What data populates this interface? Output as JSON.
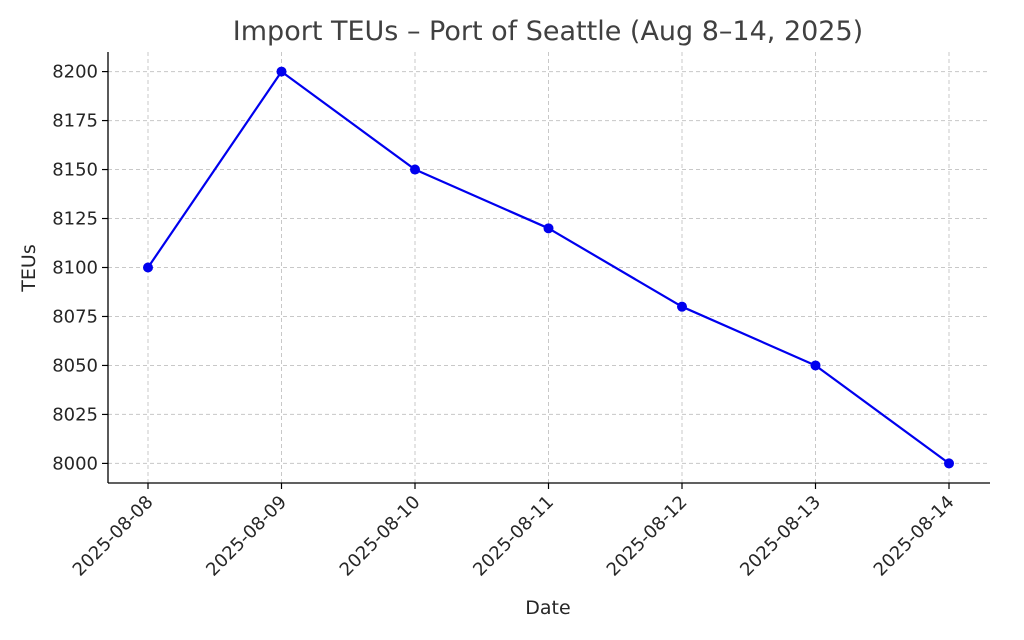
{
  "chart_data": {
    "type": "line",
    "title": "Import TEUs – Port of Seattle (Aug 8–14, 2025)",
    "xlabel": "Date",
    "ylabel": "TEUs",
    "x": [
      "2025-08-08",
      "2025-08-09",
      "2025-08-10",
      "2025-08-11",
      "2025-08-12",
      "2025-08-13",
      "2025-08-14"
    ],
    "series": [
      {
        "values": [
          8100,
          8200,
          8150,
          8120,
          8080,
          8050,
          8000
        ]
      }
    ],
    "ylim": [
      7990,
      8210
    ],
    "yticks": [
      8000,
      8025,
      8050,
      8075,
      8100,
      8125,
      8150,
      8175,
      8200
    ],
    "grid": true,
    "legend": "none",
    "colors": {
      "line": "#0000ee",
      "marker": "#0000ee"
    }
  }
}
